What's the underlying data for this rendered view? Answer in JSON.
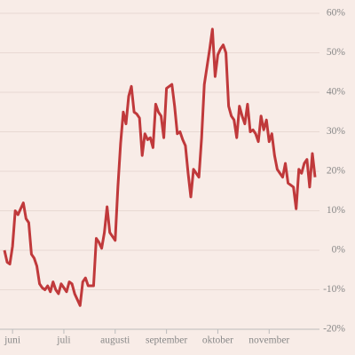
{
  "chart_data": {
    "type": "line",
    "categories": [
      null,
      null,
      null,
      "juni",
      null,
      null,
      null,
      null,
      null,
      null,
      null,
      null,
      null,
      null,
      null,
      null,
      null,
      null,
      null,
      null,
      null,
      null,
      "juli",
      null,
      null,
      null,
      null,
      null,
      null,
      null,
      null,
      null,
      null,
      null,
      null,
      null,
      null,
      null,
      null,
      null,
      null,
      "augusti",
      null,
      null,
      null,
      null,
      null,
      null,
      null,
      null,
      null,
      null,
      null,
      null,
      null,
      null,
      null,
      null,
      null,
      null,
      "september",
      null,
      null,
      null,
      null,
      null,
      null,
      null,
      null,
      null,
      null,
      null,
      null,
      null,
      null,
      null,
      null,
      null,
      null,
      "oktober",
      null,
      null,
      null,
      null,
      null,
      null,
      null,
      null,
      null,
      null,
      null,
      null,
      null,
      null,
      null,
      null,
      null,
      null,
      "november",
      null,
      null,
      null,
      null,
      null,
      null,
      null,
      null,
      null,
      null,
      null,
      null,
      null,
      null,
      null,
      null,
      null
    ],
    "values": [
      0,
      -3,
      -3.5,
      1,
      10,
      9,
      10.5,
      12,
      8,
      7,
      -1,
      -2,
      -4,
      -8.5,
      -9.5,
      -10,
      -9,
      -10.5,
      -8,
      -10,
      -11,
      -8.5,
      -9.5,
      -10.5,
      -8,
      -8.5,
      -11,
      -12.5,
      -14,
      -8,
      -7,
      -9,
      -9,
      -9,
      3,
      2,
      0.5,
      4.5,
      11,
      4.5,
      3.5,
      2.5,
      16,
      27,
      35,
      32,
      39,
      41.5,
      35,
      34.5,
      33.5,
      24,
      29.5,
      28,
      28.5,
      26,
      37,
      35,
      34,
      28.5,
      41,
      41.5,
      42,
      36.5,
      29.5,
      30,
      28,
      26.5,
      19.5,
      13.5,
      20.5,
      19.5,
      18.5,
      28.5,
      42,
      46.5,
      51,
      56,
      44,
      49.5,
      51,
      52,
      50,
      36.5,
      34,
      33,
      28.5,
      36.5,
      34,
      32,
      37,
      30,
      30.5,
      29.5,
      27.5,
      34,
      30.5,
      33,
      27.5,
      29.5,
      24,
      20.5,
      19.5,
      18.5,
      22,
      17,
      16.5,
      16,
      10.5,
      20.5,
      19.5,
      22,
      23,
      16,
      24.5,
      18.5
    ],
    "color": "#c0393b",
    "ylim": [
      -20,
      60
    ],
    "yticks": [
      {
        "value": -20,
        "label": "-20%"
      },
      {
        "value": -10,
        "label": "-10%"
      },
      {
        "value": 0,
        "label": "0%"
      },
      {
        "value": 10,
        "label": "10%"
      },
      {
        "value": 20,
        "label": "20%"
      },
      {
        "value": 30,
        "label": "30%"
      },
      {
        "value": 40,
        "label": "40%"
      },
      {
        "value": 50,
        "label": "50%"
      },
      {
        "value": 60,
        "label": "60%"
      }
    ],
    "grid": true
  }
}
